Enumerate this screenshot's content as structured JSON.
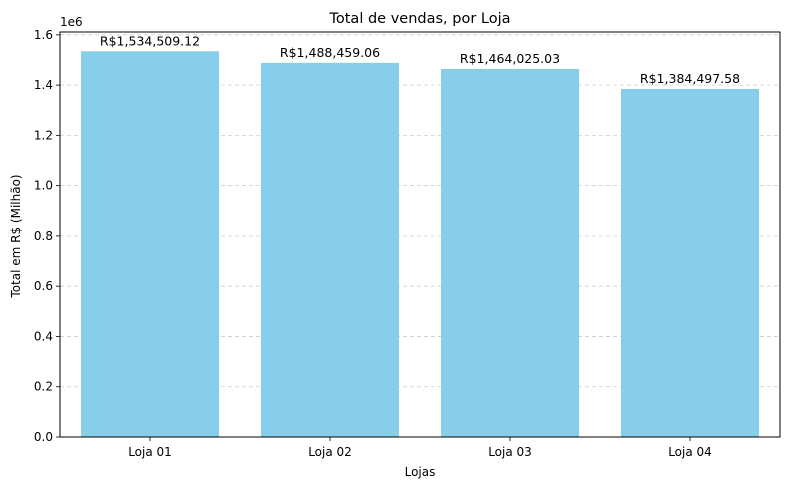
{
  "chart_data": {
    "type": "bar",
    "title": "Total de vendas, por Loja",
    "xlabel": "Lojas",
    "ylabel": "Total em R$ (Milhão)",
    "y_offset_label": "1e6",
    "categories": [
      "Loja 01",
      "Loja 02",
      "Loja 03",
      "Loja 04"
    ],
    "values": [
      1534509.12,
      1488459.06,
      1464025.03,
      1384497.58
    ],
    "data_labels": [
      "R$1,534,509.12",
      "R$1,488,459.06",
      "R$1,464,025.03",
      "R$1,384,497.58"
    ],
    "ylim": [
      0,
      1611234.58
    ],
    "yticks": [
      0,
      200000,
      400000,
      600000,
      800000,
      1000000,
      1200000,
      1400000,
      1600000
    ],
    "ytick_labels": [
      "0.0",
      "0.2",
      "0.4",
      "0.6",
      "0.8",
      "1.0",
      "1.2",
      "1.4",
      "1.6"
    ],
    "grid": "y-dashed",
    "bar_color": "#87CEEB",
    "grid_color": "#cccccc"
  }
}
